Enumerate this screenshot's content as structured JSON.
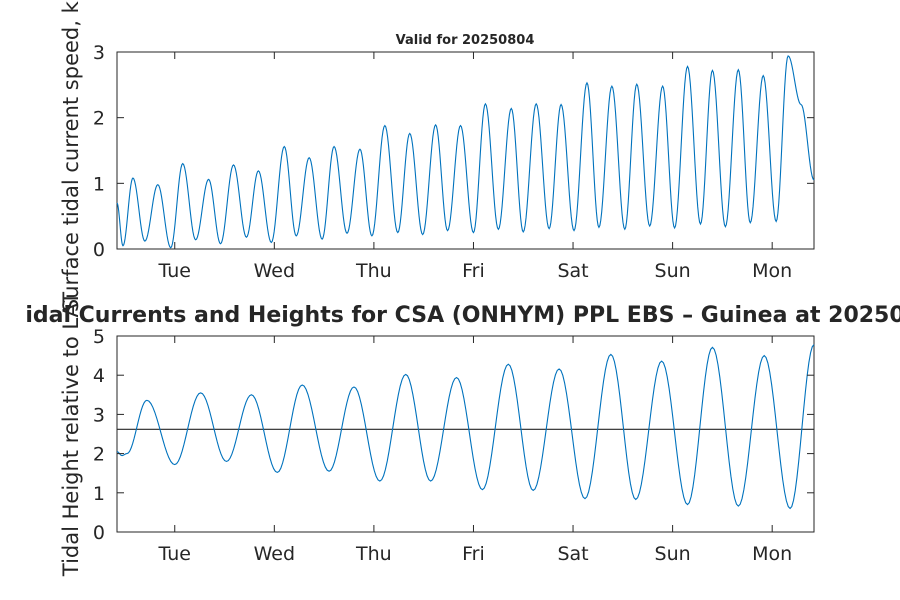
{
  "figure": {
    "main_title": "idal Currents and Heights for CSA (ONHYM) PPL EBS  – Guinea at 20250",
    "colors": {
      "series": "#0072bd",
      "reference": "#262626",
      "axes": "#262626"
    }
  },
  "chart_data": [
    {
      "type": "line",
      "title": "Valid for 20250804",
      "ylabel": "Surface tidal current speed, kn",
      "xlabel": "",
      "x_ticks": [
        "Tue",
        "Wed",
        "Thu",
        "Fri",
        "Sat",
        "Sun",
        "Mon"
      ],
      "x_tick_days": [
        1,
        2,
        3,
        4,
        5,
        6,
        7
      ],
      "xlim_days": [
        0.42,
        7.42
      ],
      "ylim": [
        0,
        3
      ],
      "y_ticks": [
        "0",
        "1",
        "2",
        "3"
      ],
      "grid": false,
      "series": [
        {
          "color": "#0072bd",
          "x_days": [
            0.42,
            0.48,
            0.58,
            0.7,
            0.83,
            0.96,
            1.08,
            1.21,
            1.34,
            1.46,
            1.59,
            1.72,
            1.84,
            1.97,
            2.1,
            2.22,
            2.35,
            2.48,
            2.6,
            2.73,
            2.86,
            2.98,
            3.11,
            3.24,
            3.36,
            3.49,
            3.62,
            3.74,
            3.87,
            4.0,
            4.12,
            4.25,
            4.38,
            4.5,
            4.63,
            4.76,
            4.88,
            5.01,
            5.14,
            5.26,
            5.39,
            5.52,
            5.64,
            5.77,
            5.9,
            6.02,
            6.15,
            6.28,
            6.4,
            6.53,
            6.66,
            6.78,
            6.91,
            7.04,
            7.16,
            7.29,
            7.42
          ],
          "values": [
            0.7,
            0.05,
            1.08,
            0.12,
            0.98,
            0.02,
            1.3,
            0.14,
            1.06,
            0.08,
            1.28,
            0.18,
            1.19,
            0.1,
            1.56,
            0.2,
            1.39,
            0.15,
            1.56,
            0.24,
            1.52,
            0.2,
            1.88,
            0.25,
            1.76,
            0.22,
            1.89,
            0.28,
            1.88,
            0.25,
            2.21,
            0.3,
            2.14,
            0.26,
            2.21,
            0.31,
            2.2,
            0.28,
            2.53,
            0.33,
            2.48,
            0.3,
            2.51,
            0.35,
            2.48,
            0.32,
            2.78,
            0.38,
            2.72,
            0.34,
            2.73,
            0.4,
            2.64,
            0.42,
            2.94,
            2.2,
            1.05
          ]
        }
      ]
    },
    {
      "type": "line",
      "title": "",
      "ylabel": "Tidal Height relative to LAT",
      "xlabel": "",
      "x_ticks": [
        "Tue",
        "Wed",
        "Thu",
        "Fri",
        "Sat",
        "Sun",
        "Mon"
      ],
      "x_tick_days": [
        1,
        2,
        3,
        4,
        5,
        6,
        7
      ],
      "xlim_days": [
        0.42,
        7.42
      ],
      "ylim": [
        0,
        5
      ],
      "y_ticks": [
        "0",
        "1",
        "2",
        "3",
        "4",
        "5"
      ],
      "grid": false,
      "reference_line": 2.62,
      "series": [
        {
          "color": "#0072bd",
          "x_days": [
            0.42,
            0.47,
            0.52,
            0.72,
            1.0,
            1.26,
            1.52,
            1.77,
            2.03,
            2.28,
            2.55,
            2.8,
            3.06,
            3.32,
            3.57,
            3.83,
            4.09,
            4.35,
            4.6,
            4.86,
            5.12,
            5.38,
            5.63,
            5.89,
            6.15,
            6.4,
            6.66,
            6.92,
            7.18,
            7.42
          ],
          "values": [
            2.05,
            1.95,
            2.0,
            3.36,
            1.72,
            3.55,
            1.8,
            3.5,
            1.52,
            3.75,
            1.55,
            3.7,
            1.3,
            4.02,
            1.3,
            3.94,
            1.08,
            4.28,
            1.06,
            4.16,
            0.85,
            4.53,
            0.83,
            4.36,
            0.7,
            4.71,
            0.66,
            4.5,
            0.6,
            4.78
          ]
        }
      ]
    }
  ]
}
